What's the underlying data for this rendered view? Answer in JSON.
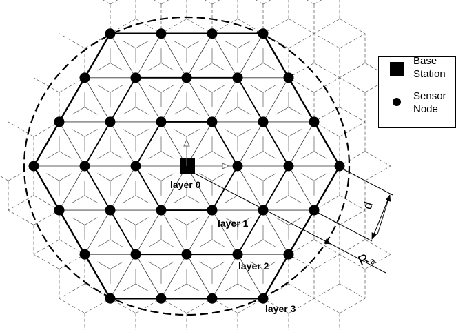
{
  "legend": {
    "items": [
      {
        "lines": [
          "Base",
          "Station"
        ]
      },
      {
        "lines": [
          "Sensor",
          "Node"
        ]
      }
    ]
  },
  "layers": [
    "layer 0",
    "layer 1",
    "layer 2",
    "layer 3"
  ],
  "dimensions": {
    "d": "d",
    "ra": {
      "main": "R",
      "sub": "a"
    }
  }
}
